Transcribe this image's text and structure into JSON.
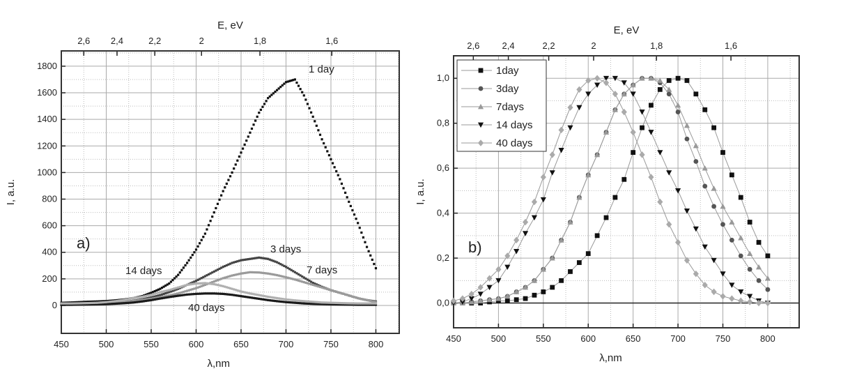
{
  "chart_data": [
    {
      "type": "scatter",
      "panel_label": "a)",
      "xlabel": "λ,nm",
      "ylabel": "I, a.u.",
      "x2label": "E, eV",
      "xlim": [
        450,
        826
      ],
      "ylim": [
        -210,
        1915
      ],
      "xticks": [
        450,
        500,
        550,
        600,
        650,
        700,
        750,
        800
      ],
      "yticks": [
        0,
        200,
        400,
        600,
        800,
        1000,
        1200,
        1400,
        1600,
        1800
      ],
      "x2ticks": [
        {
          "label": "2,6",
          "at_nm": 475
        },
        {
          "label": "2,4",
          "at_nm": 512
        },
        {
          "label": "2,2",
          "at_nm": 554
        },
        {
          "label": "2",
          "at_nm": 606
        },
        {
          "label": "1,8",
          "at_nm": 671
        },
        {
          "label": "1,6",
          "at_nm": 751
        }
      ],
      "grid": true,
      "x": [
        450,
        460,
        470,
        480,
        490,
        500,
        510,
        520,
        530,
        540,
        550,
        560,
        570,
        580,
        590,
        600,
        610,
        620,
        630,
        640,
        650,
        660,
        670,
        680,
        690,
        700,
        710,
        720,
        730,
        740,
        750,
        760,
        770,
        780,
        790,
        800
      ],
      "series": [
        {
          "name": "1 day",
          "color": "#111111",
          "values": [
            20,
            22,
            25,
            28,
            30,
            33,
            38,
            45,
            55,
            70,
            95,
            125,
            165,
            230,
            320,
            420,
            540,
            700,
            860,
            1000,
            1150,
            1300,
            1450,
            1560,
            1620,
            1680,
            1700,
            1580,
            1420,
            1250,
            1100,
            950,
            780,
            620,
            440,
            280
          ]
        },
        {
          "name": "3 days",
          "color": "#444444",
          "values": [
            10,
            10,
            11,
            12,
            14,
            17,
            21,
            27,
            35,
            46,
            60,
            78,
            100,
            125,
            155,
            185,
            220,
            255,
            290,
            320,
            340,
            350,
            360,
            350,
            325,
            290,
            250,
            210,
            170,
            140,
            115,
            95,
            75,
            55,
            40,
            30
          ]
        },
        {
          "name": "7 days",
          "color": "#9a9a9a",
          "values": [
            10,
            10,
            11,
            12,
            14,
            17,
            21,
            26,
            33,
            41,
            50,
            62,
            75,
            90,
            110,
            130,
            155,
            180,
            205,
            225,
            240,
            250,
            248,
            240,
            228,
            212,
            195,
            175,
            155,
            135,
            115,
            95,
            75,
            55,
            40,
            25
          ]
        },
        {
          "name": "14 days",
          "color": "#1a1a1a",
          "values": [
            5,
            5,
            6,
            7,
            8,
            10,
            13,
            17,
            22,
            30,
            40,
            52,
            63,
            73,
            82,
            87,
            90,
            90,
            87,
            80,
            70,
            60,
            50,
            40,
            32,
            25,
            20,
            15,
            12,
            10,
            8,
            7,
            6,
            5,
            5,
            5
          ]
        },
        {
          "name": "40 days",
          "color": "#b0b0b0",
          "values": [
            15,
            15,
            16,
            18,
            20,
            25,
            32,
            42,
            55,
            65,
            80,
            100,
            115,
            135,
            155,
            165,
            168,
            160,
            145,
            125,
            105,
            90,
            78,
            65,
            55,
            45,
            38,
            32,
            27,
            22,
            20,
            18,
            16,
            15,
            15,
            15
          ]
        }
      ]
    },
    {
      "type": "line",
      "panel_label": "b)",
      "xlabel": "λ,nm",
      "ylabel": "I, a.u.",
      "x2label": "E, eV",
      "xlim": [
        450,
        835
      ],
      "ylim": [
        -0.11,
        1.1
      ],
      "xticks": [
        450,
        500,
        550,
        600,
        650,
        700,
        750,
        800
      ],
      "yticks": [
        "0,0",
        "0,2",
        "0,4",
        "0,6",
        "0,8",
        "1,0"
      ],
      "x2ticks": [
        {
          "label": "2,6",
          "at_nm": 472
        },
        {
          "label": "2,4",
          "at_nm": 511
        },
        {
          "label": "2,2",
          "at_nm": 556
        },
        {
          "label": "2",
          "at_nm": 606
        },
        {
          "label": "1,8",
          "at_nm": 676
        },
        {
          "label": "1,6",
          "at_nm": 759
        }
      ],
      "grid": true,
      "legend": "top-left",
      "x": [
        450,
        460,
        470,
        480,
        490,
        500,
        510,
        520,
        530,
        540,
        550,
        560,
        570,
        580,
        590,
        600,
        610,
        620,
        630,
        640,
        650,
        660,
        670,
        680,
        690,
        700,
        710,
        720,
        730,
        740,
        750,
        760,
        770,
        780,
        790,
        800
      ],
      "series": [
        {
          "name": "1day",
          "marker": "square",
          "color": "#111111",
          "values": [
            0,
            0,
            0,
            0,
            0.005,
            0.01,
            0.01,
            0.015,
            0.02,
            0.035,
            0.05,
            0.07,
            0.1,
            0.14,
            0.18,
            0.22,
            0.3,
            0.38,
            0.47,
            0.55,
            0.67,
            0.78,
            0.88,
            0.95,
            0.99,
            1.0,
            0.99,
            0.93,
            0.86,
            0.78,
            0.67,
            0.57,
            0.47,
            0.36,
            0.27,
            0.21
          ]
        },
        {
          "name": "3day",
          "marker": "circle",
          "color": "#555555",
          "values": [
            0,
            0,
            0.005,
            0.01,
            0.015,
            0.02,
            0.03,
            0.05,
            0.07,
            0.1,
            0.15,
            0.2,
            0.28,
            0.36,
            0.47,
            0.57,
            0.66,
            0.76,
            0.86,
            0.93,
            0.97,
            1.0,
            1.0,
            0.98,
            0.93,
            0.85,
            0.73,
            0.63,
            0.52,
            0.43,
            0.35,
            0.28,
            0.21,
            0.15,
            0.1,
            0.06
          ]
        },
        {
          "name": "7days",
          "marker": "triangle-up",
          "color": "#999999",
          "values": [
            0,
            0,
            0.005,
            0.01,
            0.015,
            0.02,
            0.03,
            0.05,
            0.07,
            0.1,
            0.15,
            0.2,
            0.28,
            0.36,
            0.47,
            0.57,
            0.66,
            0.76,
            0.86,
            0.93,
            0.97,
            1.0,
            1.0,
            0.99,
            0.95,
            0.88,
            0.79,
            0.7,
            0.6,
            0.51,
            0.43,
            0.36,
            0.29,
            0.22,
            0.16,
            0.11
          ]
        },
        {
          "name": "14 days",
          "marker": "triangle-down",
          "color": "#111111",
          "values": [
            0,
            0.005,
            0.02,
            0.04,
            0.07,
            0.1,
            0.16,
            0.23,
            0.31,
            0.38,
            0.46,
            0.58,
            0.68,
            0.78,
            0.87,
            0.93,
            0.97,
            1.0,
            1.0,
            0.98,
            0.93,
            0.85,
            0.76,
            0.67,
            0.58,
            0.5,
            0.41,
            0.33,
            0.25,
            0.19,
            0.13,
            0.08,
            0.05,
            0.03,
            0.01,
            0
          ]
        },
        {
          "name": "40 days",
          "marker": "diamond",
          "color": "#aaaaaa",
          "values": [
            0.01,
            0.02,
            0.04,
            0.07,
            0.11,
            0.15,
            0.21,
            0.28,
            0.36,
            0.45,
            0.56,
            0.66,
            0.77,
            0.87,
            0.95,
            0.99,
            1.0,
            0.98,
            0.93,
            0.85,
            0.76,
            0.66,
            0.56,
            0.45,
            0.35,
            0.27,
            0.19,
            0.13,
            0.08,
            0.05,
            0.03,
            0.02,
            0.01,
            0.005,
            0,
            0
          ]
        }
      ]
    }
  ]
}
